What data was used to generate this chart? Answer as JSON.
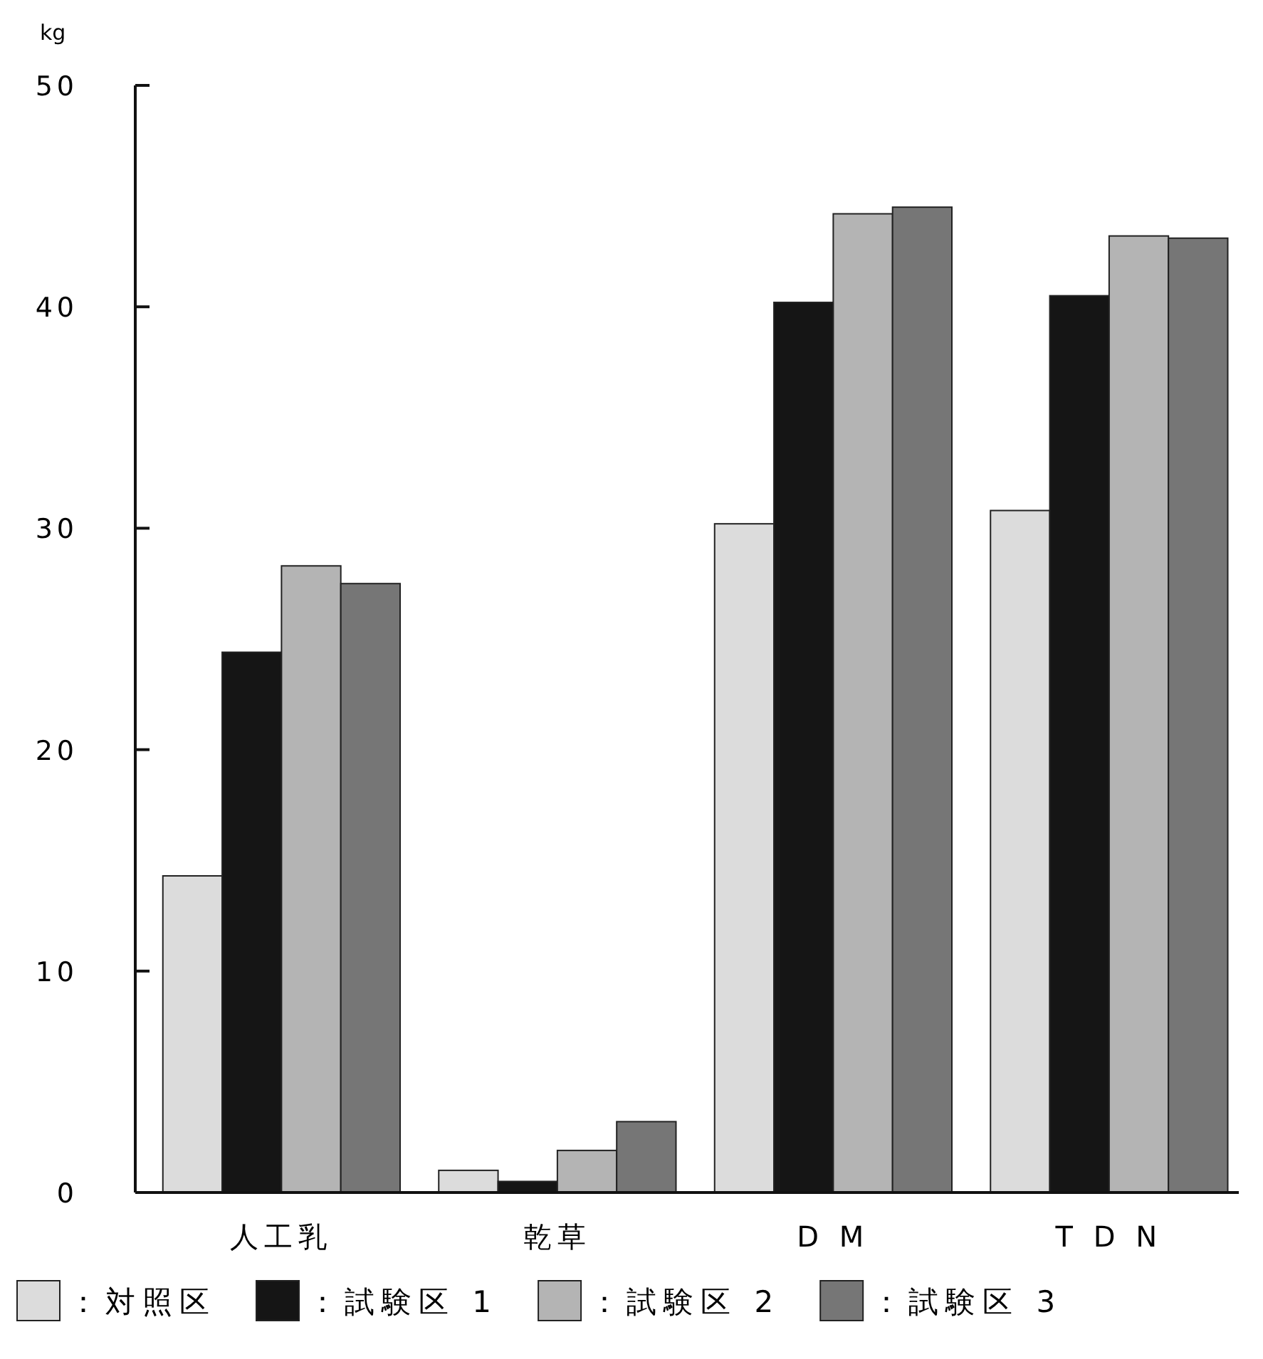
{
  "chart_data": {
    "type": "bar",
    "ylabel": "kg",
    "categories": [
      "人工乳",
      "乾草",
      "D M",
      "T D N"
    ],
    "series": [
      {
        "name": "：対照区",
        "color": "#dcdcdc",
        "values": [
          14.3,
          1.0,
          30.2,
          30.8
        ]
      },
      {
        "name": "：試験区 1",
        "color": "#151515",
        "values": [
          24.4,
          0.5,
          40.2,
          40.5
        ]
      },
      {
        "name": "：試験区 2",
        "color": "#b4b4b4",
        "values": [
          28.3,
          1.9,
          44.2,
          43.2
        ]
      },
      {
        "name": "：試験区 3",
        "color": "#767676",
        "values": [
          27.5,
          3.2,
          44.5,
          43.1
        ]
      }
    ],
    "ylim": [
      0,
      50
    ],
    "yticks": [
      0,
      10,
      20,
      30,
      40,
      50
    ],
    "grid": false,
    "legend": "bottom"
  }
}
